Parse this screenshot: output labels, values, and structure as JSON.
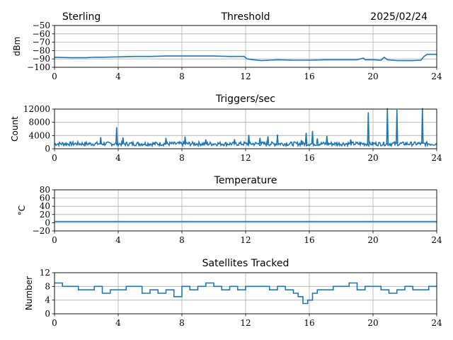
{
  "header": {
    "station": "Sterling",
    "date": "2025/02/24"
  },
  "chart_data": [
    {
      "type": "line",
      "title": "Threshold",
      "ylabel": "dBm",
      "xlim": [
        0,
        24
      ],
      "ylim": [
        -100,
        -50
      ],
      "xticks": [
        "0",
        "4",
        "8",
        "12",
        "16",
        "20",
        "24"
      ],
      "yticks": [
        "−100",
        "−90",
        "−80",
        "−70",
        "−60",
        "−50"
      ],
      "grid": true,
      "color": "#1f77b4",
      "series": [
        {
          "x": [
            0,
            1,
            2,
            2.5,
            3,
            4,
            5,
            6,
            7,
            8,
            9,
            10,
            11,
            11.9,
            12.1,
            12.5,
            13,
            13.5,
            14,
            15,
            16,
            17,
            18,
            19,
            19.4,
            19.5,
            19.7,
            20,
            20.5,
            20.7,
            20.9,
            21.5,
            22,
            22.5,
            23,
            23.2,
            23.4,
            23.8,
            24
          ],
          "y": [
            -88,
            -88.5,
            -88.5,
            -88,
            -88,
            -87.5,
            -87,
            -87,
            -86.5,
            -86.5,
            -86.5,
            -86.5,
            -87,
            -87,
            -90,
            -91,
            -92,
            -91.5,
            -91,
            -91.5,
            -91.5,
            -91,
            -91,
            -91,
            -89,
            -91,
            -91,
            -91,
            -91.5,
            -88,
            -91,
            -92,
            -92,
            -92,
            -91.5,
            -87,
            -84.5,
            -84.5,
            -84.5
          ]
        }
      ]
    },
    {
      "type": "line",
      "title": "Triggers/sec",
      "ylabel": "Count",
      "xlim": [
        0,
        24
      ],
      "ylim": [
        0,
        12000
      ],
      "xticks": [
        "0",
        "4",
        "8",
        "12",
        "16",
        "20",
        "24"
      ],
      "yticks": [
        "0",
        "4000",
        "8000",
        "12000"
      ],
      "grid": true,
      "color": "#1f77b4",
      "baseline": 1500,
      "spikes": [
        {
          "x": 2.9,
          "y": 3500
        },
        {
          "x": 3.9,
          "y": 6500
        },
        {
          "x": 4.3,
          "y": 3400
        },
        {
          "x": 7.0,
          "y": 3300
        },
        {
          "x": 8.2,
          "y": 3700
        },
        {
          "x": 9.5,
          "y": 2800
        },
        {
          "x": 11.3,
          "y": 2900
        },
        {
          "x": 12.2,
          "y": 4200
        },
        {
          "x": 12.9,
          "y": 3300
        },
        {
          "x": 13.4,
          "y": 3800
        },
        {
          "x": 14.0,
          "y": 4300
        },
        {
          "x": 15.5,
          "y": 2600
        },
        {
          "x": 15.8,
          "y": 4800
        },
        {
          "x": 16.2,
          "y": 5400
        },
        {
          "x": 16.5,
          "y": 3100
        },
        {
          "x": 17.1,
          "y": 3900
        },
        {
          "x": 18.6,
          "y": 2800
        },
        {
          "x": 19.7,
          "y": 11000
        },
        {
          "x": 20.9,
          "y": 12300
        },
        {
          "x": 21.5,
          "y": 11800
        },
        {
          "x": 23.1,
          "y": 12300
        }
      ]
    },
    {
      "type": "line",
      "title": "Temperature",
      "ylabel": "°C",
      "xlim": [
        0,
        24
      ],
      "ylim": [
        -20,
        80
      ],
      "xticks": [
        "0",
        "4",
        "8",
        "12",
        "16",
        "20",
        "24"
      ],
      "yticks": [
        "−20",
        "0",
        "20",
        "40",
        "60",
        "80"
      ],
      "grid": true,
      "color": "#1f77b4",
      "series": [
        {
          "x": [
            0,
            24
          ],
          "y": [
            3,
            3
          ]
        }
      ]
    },
    {
      "type": "line",
      "title": "Satellites Tracked",
      "ylabel": "Number",
      "xlim": [
        0,
        24
      ],
      "ylim": [
        0,
        12
      ],
      "xticks": [
        "0",
        "4",
        "8",
        "12",
        "16",
        "20",
        "24"
      ],
      "yticks": [
        "0",
        "4",
        "8",
        "12"
      ],
      "grid": true,
      "color": "#1f77b4",
      "series": [
        {
          "x": [
            0,
            0.5,
            1,
            1.5,
            2,
            2.5,
            3,
            3.5,
            4,
            4.5,
            5,
            5.5,
            6,
            6.5,
            7,
            7.5,
            8,
            8.5,
            9,
            9.5,
            10,
            10.5,
            11,
            11.5,
            12,
            12.5,
            13,
            13.5,
            14,
            14.5,
            15,
            15.3,
            15.6,
            15.9,
            16.2,
            16.5,
            17,
            17.5,
            18,
            18.5,
            19,
            19.5,
            20,
            20.5,
            21,
            21.5,
            22,
            22.5,
            23,
            23.5,
            24
          ],
          "y": [
            9,
            8,
            8,
            7,
            7,
            8,
            6,
            7,
            7,
            8,
            8,
            6,
            7,
            6,
            7,
            5,
            8,
            7,
            8,
            9,
            8,
            7,
            8,
            7,
            8,
            8,
            8,
            7,
            8,
            7,
            6,
            5,
            3,
            4,
            6,
            7,
            7,
            8,
            8,
            9,
            7,
            8,
            8,
            7,
            6,
            7,
            8,
            7,
            7,
            8,
            8
          ]
        }
      ]
    }
  ]
}
